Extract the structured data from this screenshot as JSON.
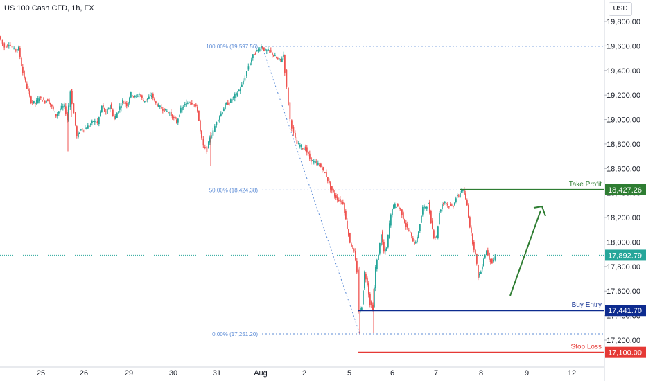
{
  "header": {
    "title": "US 100 Cash CFD, 1h, FX",
    "currency": "USD"
  },
  "colors": {
    "up": "#26a69a",
    "down": "#ef5350",
    "take_profit": "#2e7d32",
    "buy_entry": "#0d2b8f",
    "stop_loss": "#e53935",
    "current": "#26a69a",
    "fib": "#5b8bd6",
    "arrow": "#2e7d32"
  },
  "chart_data": {
    "type": "candlestick",
    "x_ticks": [
      "25",
      "26",
      "29",
      "30",
      "31",
      "Aug",
      "2",
      "5",
      "6",
      "7",
      "8",
      "9",
      "12"
    ],
    "y_ticks": [
      "17,200.00",
      "17,400.00",
      "17,600.00",
      "17,800.00",
      "18,000.00",
      "18,200.00",
      "18,400.00",
      "18,600.00",
      "18,800.00",
      "19,000.00",
      "19,200.00",
      "19,400.00",
      "19,600.00",
      "19,800.00"
    ],
    "y_tick_values": [
      17200,
      17400,
      17600,
      17800,
      18000,
      18200,
      18400,
      18600,
      18800,
      19000,
      19200,
      19400,
      19600,
      19800
    ],
    "ylim": [
      17060,
      19900
    ],
    "fib_levels": [
      {
        "label": "100.00% (19,597.56)",
        "value": 19597.56
      },
      {
        "label": "50.00% (18,424.38)",
        "value": 18424.38
      },
      {
        "label": "0.00% (17,251.20)",
        "value": 17251.2
      }
    ],
    "levels": [
      {
        "name": "Take Profit",
        "value": 18427.26,
        "price_label": "18,427.26",
        "color": "#2e7d32"
      },
      {
        "name": "Buy Entry",
        "value": 17441.7,
        "price_label": "17,441.70",
        "color": "#0d2b8f"
      },
      {
        "name": "Stop Loss",
        "value": 17100.0,
        "price_label": "17,100.00",
        "color": "#e53935"
      }
    ],
    "current_price": {
      "value": 17892.79,
      "label": "17,892.79"
    },
    "path": [
      [
        0,
        19680
      ],
      [
        8,
        19590
      ],
      [
        14,
        19620
      ],
      [
        22,
        19570
      ],
      [
        28,
        19580
      ],
      [
        34,
        19380
      ],
      [
        40,
        19260
      ],
      [
        46,
        19150
      ],
      [
        52,
        19130
      ],
      [
        58,
        19180
      ],
      [
        64,
        19150
      ],
      [
        70,
        19160
      ],
      [
        76,
        19100
      ],
      [
        82,
        19030
      ],
      [
        88,
        19090
      ],
      [
        94,
        19110
      ],
      [
        98,
        19000
      ],
      [
        103,
        19230
      ],
      [
        108,
        19050
      ],
      [
        112,
        18860
      ],
      [
        118,
        18920
      ],
      [
        124,
        18930
      ],
      [
        130,
        18950
      ],
      [
        136,
        18990
      ],
      [
        142,
        18970
      ],
      [
        148,
        19110
      ],
      [
        154,
        19050
      ],
      [
        160,
        19120
      ],
      [
        166,
        19000
      ],
      [
        172,
        19080
      ],
      [
        178,
        19150
      ],
      [
        184,
        19120
      ],
      [
        190,
        19210
      ],
      [
        196,
        19180
      ],
      [
        202,
        19210
      ],
      [
        208,
        19150
      ],
      [
        214,
        19170
      ],
      [
        220,
        19200
      ],
      [
        226,
        19130
      ],
      [
        232,
        19100
      ],
      [
        238,
        19080
      ],
      [
        244,
        19060
      ],
      [
        250,
        19020
      ],
      [
        256,
        18980
      ],
      [
        262,
        19080
      ],
      [
        268,
        19120
      ],
      [
        274,
        19150
      ],
      [
        280,
        19130
      ],
      [
        286,
        19080
      ],
      [
        290,
        18900
      ],
      [
        295,
        18780
      ],
      [
        300,
        18750
      ],
      [
        304,
        18860
      ],
      [
        309,
        18900
      ],
      [
        314,
        18990
      ],
      [
        320,
        19050
      ],
      [
        326,
        19120
      ],
      [
        332,
        19140
      ],
      [
        338,
        19180
      ],
      [
        344,
        19220
      ],
      [
        350,
        19280
      ],
      [
        355,
        19350
      ],
      [
        360,
        19440
      ],
      [
        366,
        19520
      ],
      [
        372,
        19560
      ],
      [
        378,
        19597
      ],
      [
        384,
        19560
      ],
      [
        390,
        19560
      ],
      [
        396,
        19520
      ],
      [
        402,
        19490
      ],
      [
        406,
        19480
      ],
      [
        410,
        19530
      ],
      [
        415,
        19260
      ],
      [
        420,
        19000
      ],
      [
        425,
        18880
      ],
      [
        430,
        18800
      ],
      [
        436,
        18780
      ],
      [
        442,
        18760
      ],
      [
        448,
        18680
      ],
      [
        454,
        18650
      ],
      [
        460,
        18640
      ],
      [
        466,
        18600
      ],
      [
        472,
        18540
      ],
      [
        478,
        18440
      ],
      [
        484,
        18380
      ],
      [
        490,
        18340
      ],
      [
        496,
        18320
      ],
      [
        500,
        18180
      ],
      [
        506,
        18000
      ],
      [
        512,
        17920
      ],
      [
        516,
        17760
      ],
      [
        519,
        17430
      ],
      [
        523,
        17480
      ],
      [
        527,
        17750
      ],
      [
        531,
        17660
      ],
      [
        535,
        17500
      ],
      [
        539,
        17460
      ],
      [
        543,
        17790
      ],
      [
        547,
        17900
      ],
      [
        551,
        18070
      ],
      [
        555,
        17920
      ],
      [
        559,
        17950
      ],
      [
        563,
        18150
      ],
      [
        567,
        18280
      ],
      [
        571,
        18300
      ],
      [
        575,
        18290
      ],
      [
        579,
        18260
      ],
      [
        583,
        18200
      ],
      [
        587,
        18130
      ],
      [
        591,
        18090
      ],
      [
        595,
        18040
      ],
      [
        599,
        17990
      ],
      [
        603,
        18030
      ],
      [
        607,
        18150
      ],
      [
        611,
        18280
      ],
      [
        615,
        18290
      ],
      [
        619,
        18310
      ],
      [
        623,
        18170
      ],
      [
        627,
        18050
      ],
      [
        631,
        18040
      ],
      [
        635,
        18240
      ],
      [
        639,
        18310
      ],
      [
        643,
        18330
      ],
      [
        647,
        18300
      ],
      [
        651,
        18290
      ],
      [
        655,
        18300
      ],
      [
        659,
        18360
      ],
      [
        663,
        18380
      ],
      [
        667,
        18430
      ],
      [
        671,
        18390
      ],
      [
        675,
        18300
      ],
      [
        679,
        18130
      ],
      [
        683,
        18000
      ],
      [
        687,
        17900
      ],
      [
        691,
        17720
      ],
      [
        695,
        17760
      ],
      [
        699,
        17870
      ],
      [
        703,
        17930
      ],
      [
        707,
        17870
      ],
      [
        711,
        17830
      ],
      [
        716,
        17880
      ]
    ]
  }
}
